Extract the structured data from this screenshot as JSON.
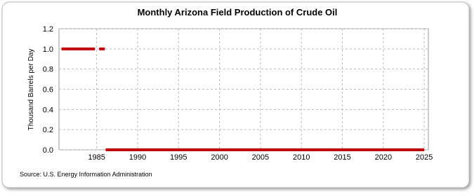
{
  "chart_data": {
    "type": "line",
    "title": "Monthly Arizona Field Production of Crude Oil",
    "y_label": "Thousand Barrels per Day",
    "source": "Source: U.S. Energy Information Administration",
    "x": [
      1980.7,
      1984.8,
      1984.9,
      1985.3,
      1986.0,
      1986.05,
      1986.1,
      2025.0
    ],
    "series": [
      {
        "color": "#cc0000",
        "values": [
          1,
          1,
          null,
          1,
          1,
          null,
          0,
          0
        ]
      }
    ],
    "xlim": [
      1980.4,
      2025.5
    ],
    "xticks": [
      1985,
      1990,
      1995,
      2000,
      2005,
      2010,
      2015,
      2020,
      2025
    ],
    "ylim": [
      0,
      1.2
    ],
    "yticks": [
      {
        "value": 0,
        "label": "0.0"
      },
      0.2,
      0.4,
      0.6,
      0.8,
      {
        "value": 1,
        "label": "1.0"
      },
      1.2
    ],
    "grid": true
  }
}
